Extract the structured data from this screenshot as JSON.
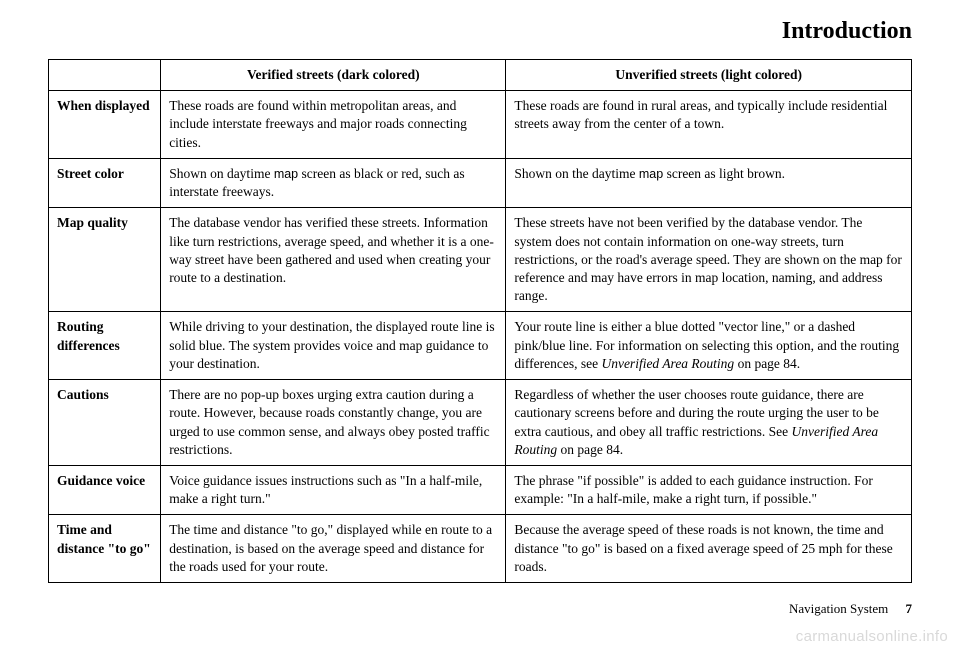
{
  "header_title": "Introduction",
  "footer": {
    "label": "Navigation System",
    "page": "7"
  },
  "watermark": "carmanualsonline.info",
  "table": {
    "head": {
      "blank": "",
      "verified": "Verified streets (dark colored)",
      "unverified": "Unverified streets (light colored)"
    },
    "rows": {
      "when": {
        "label": "When displayed",
        "v": "These roads are found within metropolitan areas, and include interstate freeways and major roads connecting cities.",
        "u": "These roads are found in rural areas, and typically include residential streets away from the center of a town."
      },
      "color": {
        "label": "Street color",
        "v_pre": "Shown on daytime ",
        "v_map": "map",
        "v_post": " screen as black or red, such as interstate freeways.",
        "u_pre": "Shown on the daytime ",
        "u_map": "map",
        "u_post": " screen as light brown."
      },
      "quality": {
        "label": "Map quality",
        "v": "The database vendor has verified these streets. Information like turn restrictions, average speed, and whether it is a one-way street have been gathered and used when creating your route to a destination.",
        "u": "These streets have not been verified by the database vendor. The system does not contain information on one-way streets, turn restrictions, or the road's average speed. They are shown on the map for reference and may have errors in map location, naming, and address range."
      },
      "routing": {
        "label": "Routing differences",
        "v": "While driving to your destination, the displayed route line is solid blue. The system provides voice and map guidance to your destination.",
        "u_pre": "Your route line is either a blue dotted \"vector line,\" or a dashed pink/blue line. For information on selecting this option, and the routing differences, see ",
        "u_ref": "Unverified Area Routing",
        "u_post": " on page 84."
      },
      "cautions": {
        "label": "Cautions",
        "v": "There are no pop-up boxes urging extra caution during a route. However, because roads constantly change, you are urged to use common sense, and always obey posted traffic restrictions.",
        "u_pre": "Regardless of whether the user chooses route guidance, there are cautionary screens before and during the route urging the user to be extra cautious, and obey all traffic restrictions. See ",
        "u_ref": "Unverified Area Routing",
        "u_post": " on page 84."
      },
      "voice": {
        "label": "Guidance voice",
        "v": "Voice guidance issues instructions such as \"In a half-mile, make a right turn.\"",
        "u": "The phrase \"if possible\" is added to each guidance instruction. For example: \"In a half-mile, make a right turn, if possible.\""
      },
      "time": {
        "label": "Time and distance \"to go\"",
        "v": "The time and distance \"to go,\" displayed while en route to a destination, is based on the average speed and distance for the roads used for your route.",
        "u": "Because the average speed of these roads is not known, the time and distance \"to go\" is based on a fixed average speed of 25 mph for these roads."
      }
    }
  }
}
